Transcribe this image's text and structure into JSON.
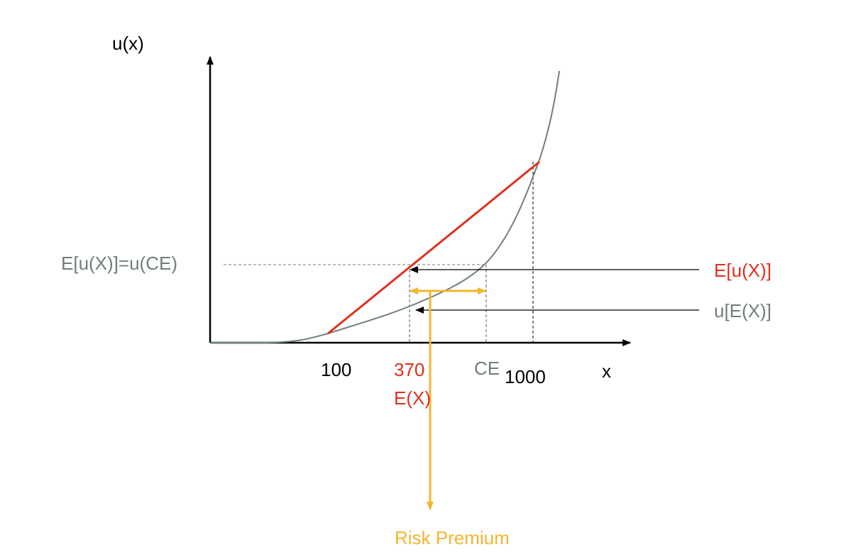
{
  "colors": {
    "axis": "#000000",
    "curve": "#6f7f77",
    "chord": "#e0301e",
    "risk": "#f5b52e",
    "guide": "#555555",
    "gray_text": "#6f7f77",
    "red_text": "#e0301e"
  },
  "axes": {
    "y_label": "u(x)",
    "x_label": "x"
  },
  "ticks": {
    "low": "100",
    "expected_value": "370",
    "expected_value_name": "E(X)",
    "certainty_equivalent": "CE",
    "high": "1000"
  },
  "labels": {
    "eu_equals_uce": "E[u(X)]=u(CE)",
    "expected_utility": "E[u(X)]",
    "utility_of_expected": "u[E(X)]",
    "risk_premium": "Risk Premium"
  }
}
